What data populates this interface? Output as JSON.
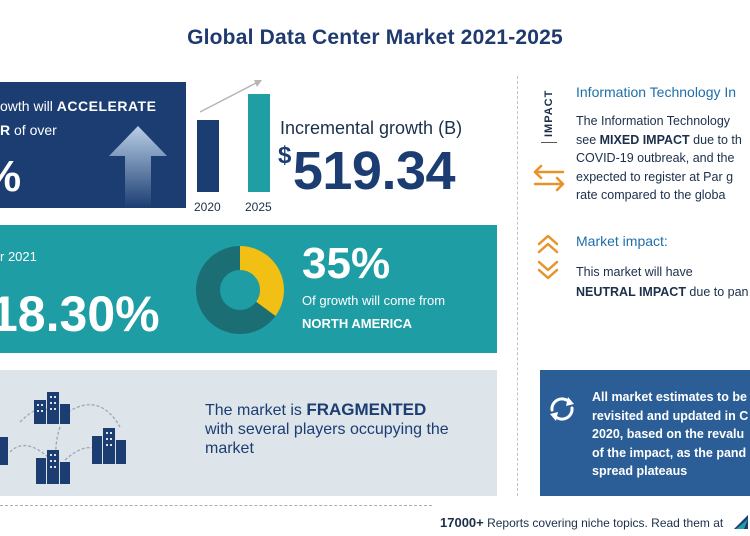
{
  "title": "Global Data Center Market 2021-2025",
  "growth_box": {
    "line1_prefix": "owth will ",
    "line1_bold": "ACCELERATE",
    "line2_bold": "R",
    "line2_suffix": " of over",
    "big_value": "%"
  },
  "bars": {
    "label_2020": "2020",
    "label_2025": "2025"
  },
  "incremental": {
    "label": "Incremental growth (B)",
    "currency": "$",
    "value": "519.34"
  },
  "yoy": {
    "year_label": "r  2021",
    "value": "18.30%"
  },
  "region": {
    "share_value": 35,
    "percent": "35%",
    "text": "Of growth will come from",
    "name": "NORTH AMERICA"
  },
  "fragmented": {
    "prefix": "The market is ",
    "bold": "FRAGMENTED",
    "line2": "with several players occupying the",
    "line3": "market"
  },
  "impact": {
    "vertical_label": "IMPACT",
    "it_heading": "Information Technology In",
    "it_lines": [
      {
        "pre": "The Information Technology",
        "bold": "",
        "post": ""
      },
      {
        "pre": "see ",
        "bold": "MIXED IMPACT",
        "post": " due to th"
      },
      {
        "pre": "COVID-19 outbreak, and the",
        "bold": "",
        "post": ""
      },
      {
        "pre": "expected to register at Par g",
        "bold": "",
        "post": ""
      },
      {
        "pre": "rate compared to the globa",
        "bold": "",
        "post": ""
      }
    ],
    "market_heading": "Market impact:",
    "market_line1": "This market will have",
    "market_line2_bold": "NEUTRAL IMPACT",
    "market_line2_suffix": " due to pan"
  },
  "note": {
    "lines": [
      "All market estimates to be",
      "revisited and updated in C",
      "2020, based on the revalu",
      "of the impact, as the pand",
      "spread plateaus"
    ]
  },
  "footer": {
    "count": "17000+",
    "text": " Reports covering niche topics. Read them at"
  },
  "colors": {
    "navy": "#1b3d72",
    "teal": "#1e9ea4",
    "yellow": "#f2c014",
    "orange": "#e8932a",
    "light_gray": "#dde4ea",
    "note_blue": "#2b5e96"
  }
}
